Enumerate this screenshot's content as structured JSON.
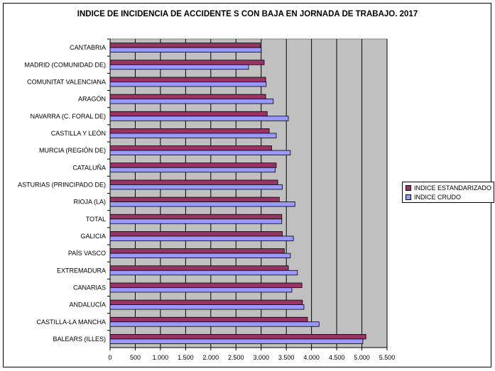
{
  "chart_data": {
    "type": "bar",
    "orientation": "horizontal",
    "title": "INDICE DE INCIDENCIA DE ACCIDENTE S CON BAJA EN JORNADA DE TRABAJO. 2017",
    "xlabel": "",
    "ylabel": "",
    "xlim": [
      0,
      5500
    ],
    "x_ticks": [
      "0",
      "500",
      "1.000",
      "1.500",
      "2.000",
      "2.500",
      "3.000",
      "3.500",
      "4.000",
      "4.500",
      "5.000",
      "5.500"
    ],
    "grid": true,
    "legend_position": "right",
    "categories": [
      "CANTABRIA",
      "MADRID (COMUNIDAD DE)",
      "COMUNITAT VALENCIANA",
      "ARAGÓN",
      "NAVARRA (C. FORAL DE)",
      "CASTILLA Y LEÓN",
      "MURCIA (REGIÓN DE)",
      "CATALUÑA",
      "ASTURIAS (PRINCIPADO DE)",
      "RIOJA (LA)",
      "TOTAL",
      "GALICIA",
      "PAÍS VASCO",
      "EXTREMADURA",
      "CANARIAS",
      "ANDALUCÍA",
      "CASTILLA-LA MANCHA",
      "BALEARS (ILLES)"
    ],
    "series": [
      {
        "name": "INDICE ESTANDARIZADO",
        "color": "#993366",
        "values": [
          2980,
          3060,
          3090,
          3090,
          3120,
          3160,
          3210,
          3300,
          3330,
          3360,
          3410,
          3420,
          3460,
          3540,
          3810,
          3820,
          3920,
          5080
        ]
      },
      {
        "name": "INDICE CRUDO",
        "color": "#9999ff",
        "values": [
          3000,
          2750,
          3100,
          3240,
          3540,
          3300,
          3580,
          3280,
          3420,
          3670,
          3410,
          3640,
          3580,
          3720,
          3610,
          3850,
          4150,
          5020
        ]
      }
    ]
  }
}
